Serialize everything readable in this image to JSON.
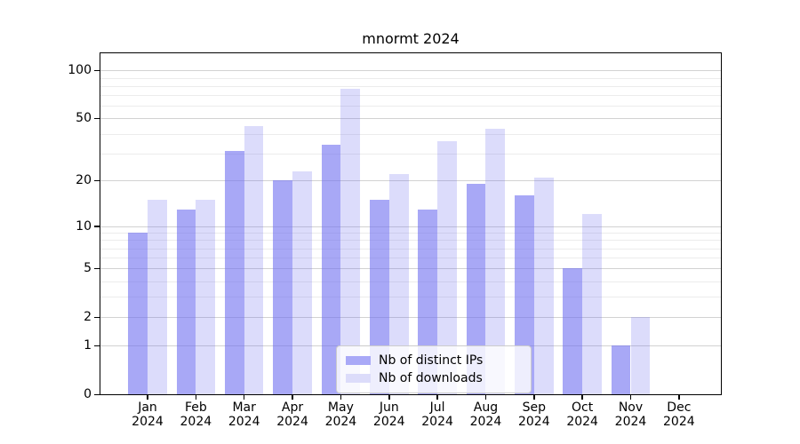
{
  "title": "mnormt 2024",
  "colors": {
    "bar_ips": "rgba(110,110,240,0.60)",
    "bar_downloads": "rgba(110,110,240,0.24)",
    "swatch_ips": "#a9a9f7",
    "swatch_downloads": "#dcdcfa",
    "grid_major": "#d2d2d2",
    "grid_minor": "#ececec",
    "axis": "#000000"
  },
  "legend": {
    "items": [
      "Nb of distinct IPs",
      "Nb of downloads"
    ]
  },
  "chart_data": {
    "type": "bar",
    "title": "mnormt 2024",
    "categories": [
      "Jan 2024",
      "Feb 2024",
      "Mar 2024",
      "Apr 2024",
      "May 2024",
      "Jun 2024",
      "Jul 2024",
      "Aug 2024",
      "Sep 2024",
      "Oct 2024",
      "Nov 2024",
      "Dec 2024"
    ],
    "series": [
      {
        "name": "Nb of distinct IPs",
        "color": "rgba(110,110,240,0.60)",
        "swatch": "#a9a9f7",
        "values": [
          9,
          13,
          31,
          20,
          34,
          15,
          13,
          19,
          16,
          5,
          1,
          0
        ]
      },
      {
        "name": "Nb of downloads",
        "color": "rgba(110,110,240,0.24)",
        "swatch": "#dcdcfa",
        "values": [
          15,
          15,
          45,
          23,
          77,
          22,
          36,
          43,
          21,
          12,
          2,
          0
        ]
      }
    ],
    "y_scale": "log1p",
    "y_ticks": [
      0,
      1,
      2,
      5,
      10,
      20,
      50,
      100
    ],
    "y_minor_ticks": [
      3,
      4,
      6,
      7,
      8,
      9,
      30,
      40,
      60,
      70,
      80,
      90
    ],
    "ylim": [
      0,
      128
    ],
    "xlabel": "",
    "ylabel": "",
    "grid": true,
    "legend_position": "lower center"
  }
}
